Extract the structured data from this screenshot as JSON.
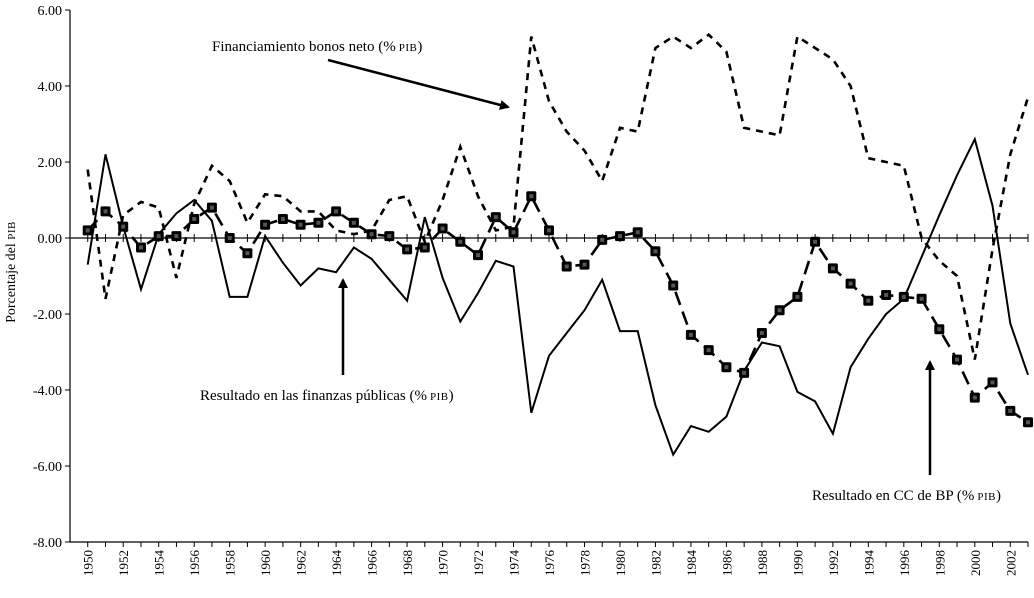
{
  "chart_data": {
    "type": "line",
    "x": [
      1950,
      1951,
      1952,
      1953,
      1954,
      1955,
      1956,
      1957,
      1958,
      1959,
      1960,
      1961,
      1962,
      1963,
      1964,
      1965,
      1966,
      1967,
      1968,
      1969,
      1970,
      1971,
      1972,
      1973,
      1974,
      1975,
      1976,
      1977,
      1978,
      1979,
      1980,
      1981,
      1982,
      1983,
      1984,
      1985,
      1986,
      1987,
      1988,
      1989,
      1990,
      1991,
      1992,
      1993,
      1994,
      1995,
      1996,
      1997,
      1998,
      1999,
      2000,
      2001,
      2002,
      2003
    ],
    "xlim": [
      1949,
      2003
    ],
    "x_tick_labels": [
      "1950",
      "1952",
      "1954",
      "1956",
      "1958",
      "1960",
      "1962",
      "1964",
      "1966",
      "1968",
      "1970",
      "1972",
      "1974",
      "1976",
      "1978",
      "1980",
      "1982",
      "1984",
      "1986",
      "1988",
      "1990",
      "1992",
      "1994",
      "1996",
      "1998",
      "2000",
      "2002"
    ],
    "ylabel": "Porcentaje del PIB",
    "ylim": [
      -8,
      6
    ],
    "y_tick_labels": [
      "6.00",
      "4.00",
      "2.00",
      "0.00",
      "-2.00",
      "-4.00",
      "-6.00",
      "-8.00"
    ],
    "series": [
      {
        "key": "bonos",
        "style": "dashed",
        "values": [
          1.8,
          -1.6,
          0.6,
          0.95,
          0.8,
          -1.05,
          0.9,
          1.9,
          1.5,
          0.4,
          1.15,
          1.1,
          0.7,
          0.7,
          0.2,
          0.1,
          0.2,
          1.0,
          1.1,
          -0.1,
          1.0,
          2.4,
          1.1,
          0.2,
          0.3,
          5.3,
          3.6,
          2.8,
          2.3,
          1.5,
          2.9,
          2.8,
          5.0,
          5.3,
          5.0,
          5.35,
          4.9,
          2.9,
          2.8,
          2.7,
          5.3,
          5.0,
          4.7,
          4.0,
          2.1,
          2.0,
          1.9,
          0.0,
          -0.6,
          -1.0,
          -3.2,
          -0.3,
          2.2,
          3.7
        ]
      },
      {
        "key": "finanzas",
        "style": "solid",
        "values": [
          -0.7,
          2.2,
          0.3,
          -1.35,
          0.1,
          0.65,
          1.0,
          0.45,
          -1.55,
          -1.55,
          0.05,
          -0.65,
          -1.25,
          -0.8,
          -0.9,
          -0.25,
          -0.55,
          -1.1,
          -1.65,
          0.55,
          -1.05,
          -2.2,
          -1.45,
          -0.6,
          -0.75,
          -4.6,
          -3.1,
          -2.5,
          -1.9,
          -1.1,
          -2.45,
          -2.45,
          -4.4,
          -5.7,
          -4.95,
          -5.1,
          -4.7,
          -3.5,
          -2.75,
          -2.85,
          -4.05,
          -4.3,
          -5.15,
          -3.4,
          -2.65,
          -2.0,
          -1.6,
          -0.5,
          0.6,
          1.65,
          2.6,
          0.85,
          -2.25,
          -3.6
        ]
      },
      {
        "key": "cc_bp",
        "style": "markers",
        "values": [
          0.2,
          0.7,
          0.3,
          -0.25,
          0.05,
          0.05,
          0.5,
          0.8,
          0.0,
          -0.4,
          0.35,
          0.5,
          0.35,
          0.4,
          0.7,
          0.4,
          0.1,
          0.05,
          -0.3,
          -0.25,
          0.25,
          -0.1,
          -0.45,
          0.55,
          0.15,
          1.1,
          0.2,
          -0.75,
          -0.7,
          -0.05,
          0.05,
          0.15,
          -0.35,
          -1.25,
          -2.55,
          -2.95,
          -3.4,
          -3.55,
          -2.5,
          -1.9,
          -1.55,
          -0.1,
          -0.8,
          -1.2,
          -1.65,
          -1.5,
          -1.55,
          -1.6,
          -2.4,
          -3.2,
          -4.2,
          -3.8,
          -4.55,
          -4.85
        ]
      }
    ],
    "annotations": [
      {
        "key": "bonos_label",
        "text": "Financiamiento bonos neto  (%",
        "suffix": "PIB",
        "close": ")"
      },
      {
        "key": "finanzas_label",
        "text": "Resultado en las  finanzas públicas (%",
        "suffix": "PIB",
        "close": ")"
      },
      {
        "key": "cc_label",
        "text": "Resultado en CC de BP (%",
        "suffix": "PIB",
        "close": ")"
      }
    ]
  }
}
